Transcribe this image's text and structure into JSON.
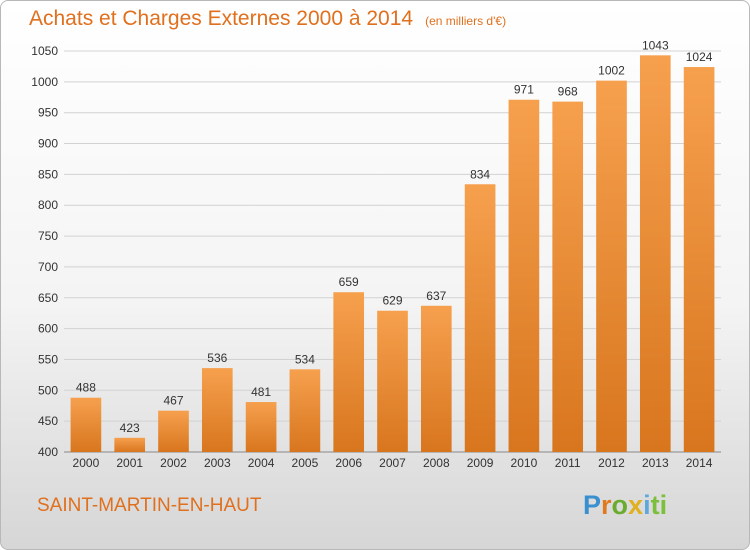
{
  "header": {
    "title": "Achats et Charges Externes 2000 à 2014",
    "subtitle": "(en milliers d'€)"
  },
  "footer": {
    "place": "SAINT-MARTIN-EN-HAUT",
    "logo_parts": [
      "P",
      "r",
      "o",
      "x",
      "i",
      "ti"
    ]
  },
  "colors": {
    "accent": "#e0701e",
    "bar_top": "#f6a04e",
    "bar_bottom": "#d8761e"
  },
  "chart_data": {
    "type": "bar",
    "title": "Achats et Charges Externes 2000 à 2014",
    "categories": [
      "2000",
      "2001",
      "2002",
      "2003",
      "2004",
      "2005",
      "2006",
      "2007",
      "2008",
      "2009",
      "2010",
      "2011",
      "2012",
      "2013",
      "2014"
    ],
    "values": [
      488,
      423,
      467,
      536,
      481,
      534,
      659,
      629,
      637,
      834,
      971,
      968,
      1002,
      1043,
      1024
    ],
    "ylim": [
      400,
      1050
    ],
    "yticks": [
      400,
      450,
      500,
      550,
      600,
      650,
      700,
      750,
      800,
      850,
      900,
      950,
      1000,
      1050
    ],
    "grid": true,
    "legend": false
  }
}
